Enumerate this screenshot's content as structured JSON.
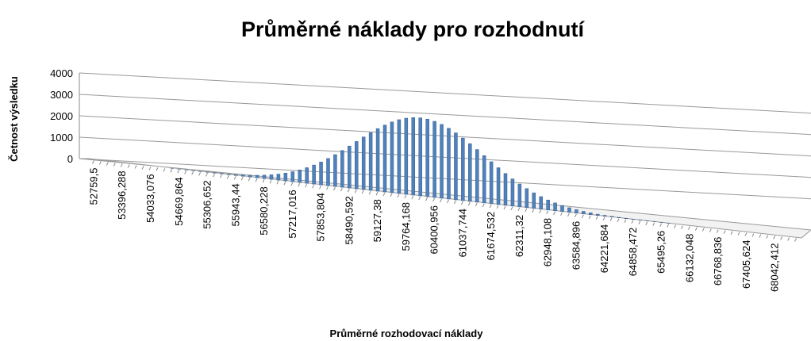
{
  "chart_data": {
    "type": "bar3d",
    "title": "Průměrné náklady pro rozhodnutí",
    "x_label": "Průměrné rozhodovací náklady",
    "y_label": "Četnost výsledku",
    "categories": [
      "52759,5",
      null,
      null,
      null,
      "53396,288",
      null,
      null,
      null,
      "54033,076",
      null,
      null,
      null,
      "54669,864",
      null,
      null,
      null,
      "55306,652",
      null,
      null,
      null,
      "55943,44",
      null,
      null,
      null,
      "56580,228",
      null,
      null,
      null,
      "57217,016",
      null,
      null,
      null,
      "57853,804",
      null,
      null,
      null,
      "58490,592",
      null,
      null,
      null,
      "59127,38",
      null,
      null,
      null,
      "59764,168",
      null,
      null,
      null,
      "60400,956",
      null,
      null,
      null,
      "61037,744",
      null,
      null,
      null,
      "61674,532",
      null,
      null,
      null,
      "62311,32",
      null,
      null,
      null,
      "62948,108",
      null,
      null,
      null,
      "63584,896",
      null,
      null,
      null,
      "64221,684",
      null,
      null,
      null,
      "64858,472",
      null,
      null,
      null,
      "65495,26",
      null,
      null,
      null,
      "66132,048",
      null,
      null,
      null,
      "66768,836",
      null,
      null,
      null,
      "67405,624",
      null,
      null,
      null,
      "68042,412",
      null,
      null,
      null
    ],
    "values": [
      0,
      0,
      0,
      0,
      0,
      0,
      0,
      0,
      0,
      0,
      0,
      1,
      1,
      2,
      3,
      4,
      6,
      9,
      14,
      20,
      28,
      39,
      55,
      75,
      101,
      134,
      176,
      228,
      290,
      364,
      451,
      550,
      661,
      784,
      918,
      1061,
      1211,
      1365,
      1518,
      1665,
      1804,
      1930,
      2040,
      2129,
      2195,
      2236,
      2250,
      2236,
      2195,
      2129,
      2040,
      1930,
      1804,
      1665,
      1518,
      1365,
      1211,
      1061,
      918,
      784,
      661,
      550,
      451,
      364,
      290,
      228,
      176,
      134,
      101,
      75,
      55,
      39,
      28,
      20,
      14,
      9,
      6,
      4,
      3,
      2,
      1,
      1,
      0,
      0,
      0,
      0,
      0,
      0,
      0,
      0,
      0,
      0,
      0,
      0,
      0,
      0,
      0,
      0,
      0,
      0
    ],
    "color": "#4f81bd",
    "ylim": [
      0,
      4000
    ],
    "yticks": [
      0,
      1000,
      2000,
      3000,
      4000
    ],
    "grid": true
  }
}
